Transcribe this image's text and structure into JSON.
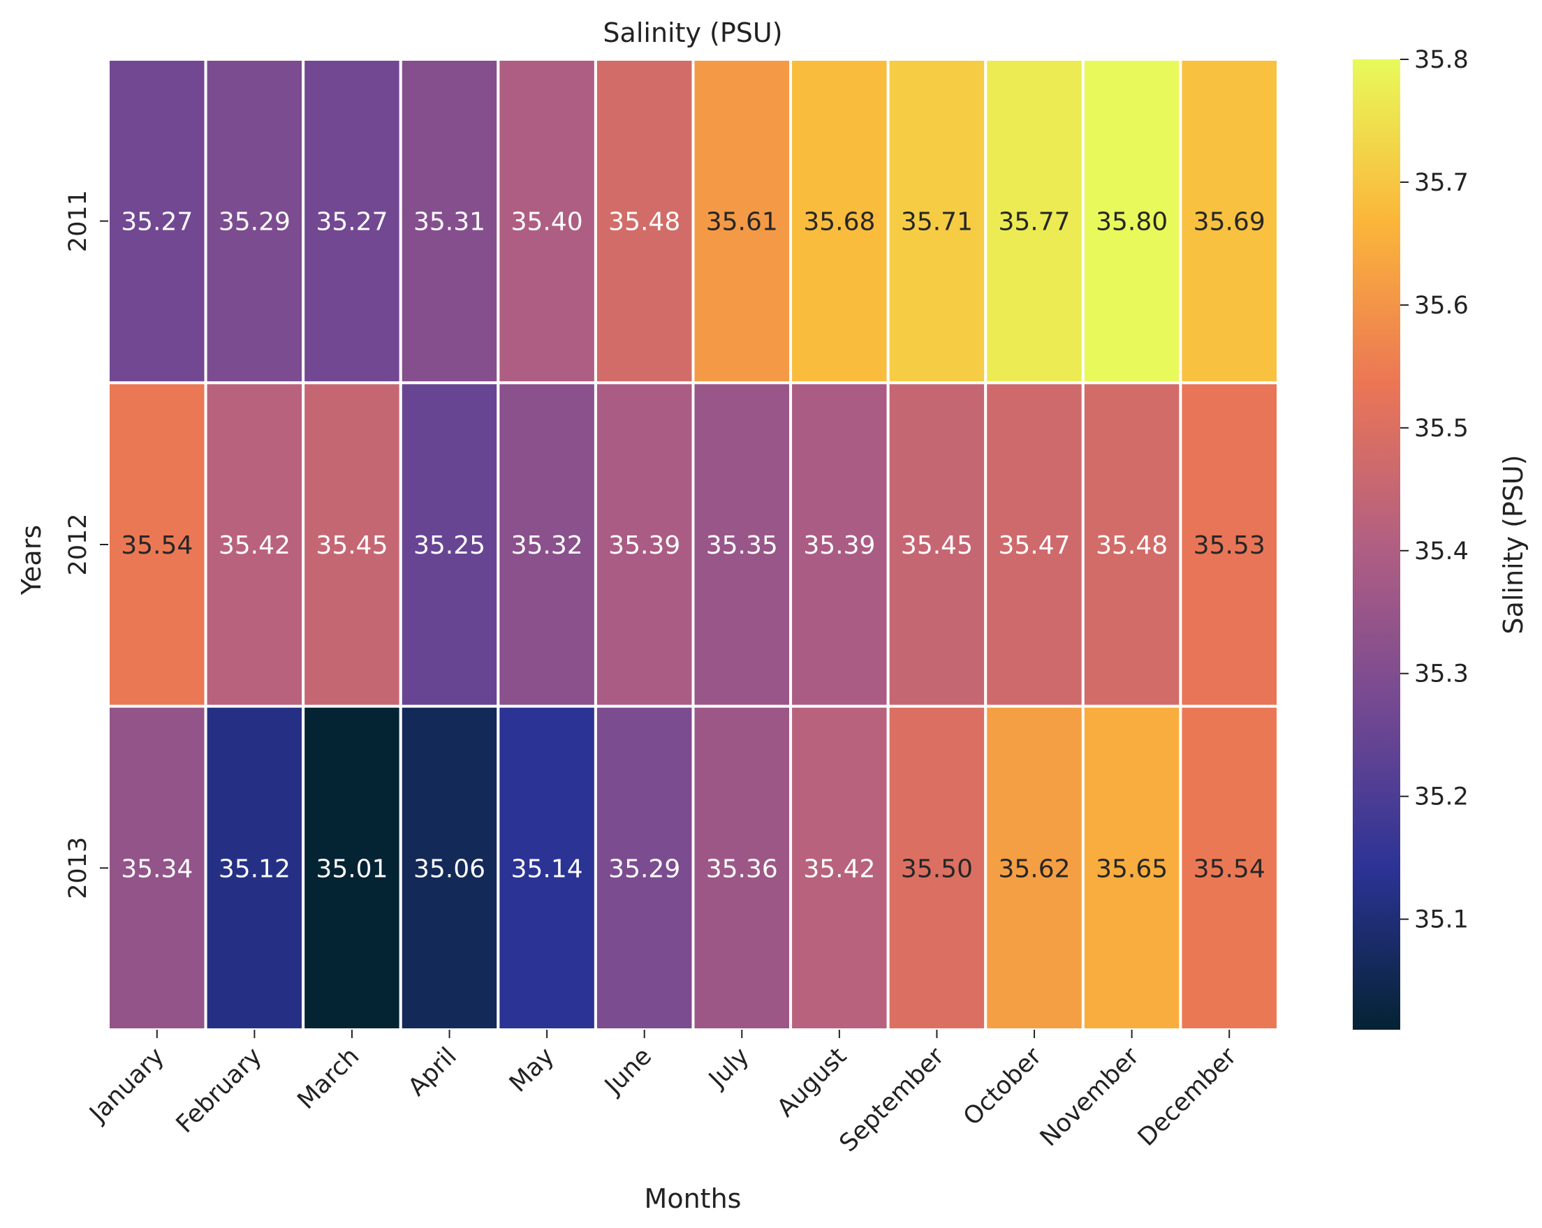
{
  "chart_data": {
    "type": "heatmap",
    "title": "Salinity (PSU)",
    "xlabel": "Months",
    "ylabel": "Years",
    "x": [
      "January",
      "February",
      "March",
      "April",
      "May",
      "June",
      "July",
      "August",
      "September",
      "October",
      "November",
      "December"
    ],
    "y": [
      "2011",
      "2012",
      "2013"
    ],
    "values": [
      [
        35.27,
        35.29,
        35.27,
        35.31,
        35.4,
        35.48,
        35.61,
        35.68,
        35.71,
        35.77,
        35.8,
        35.69
      ],
      [
        35.54,
        35.42,
        35.45,
        35.25,
        35.32,
        35.39,
        35.35,
        35.39,
        35.45,
        35.47,
        35.48,
        35.53
      ],
      [
        35.34,
        35.12,
        35.01,
        35.06,
        35.14,
        35.29,
        35.36,
        35.42,
        35.5,
        35.62,
        35.65,
        35.54
      ]
    ],
    "value_format": "2 decimals",
    "colorbar": {
      "label": "Salinity (PSU)",
      "range": [
        35.01,
        35.8
      ],
      "ticks": [
        "35.1",
        "35.2",
        "35.3",
        "35.4",
        "35.5",
        "35.6",
        "35.7",
        "35.8"
      ],
      "tick_values": [
        35.1,
        35.2,
        35.3,
        35.4,
        35.5,
        35.6,
        35.7,
        35.8
      ],
      "colormap": "thermal",
      "colormap_stops": [
        "#042333",
        "#2c3395",
        "#744992",
        "#b15f82",
        "#eb7655",
        "#fbb63a",
        "#e8fa5b"
      ]
    },
    "grid": false,
    "cell_border_color": "#ffffff"
  }
}
